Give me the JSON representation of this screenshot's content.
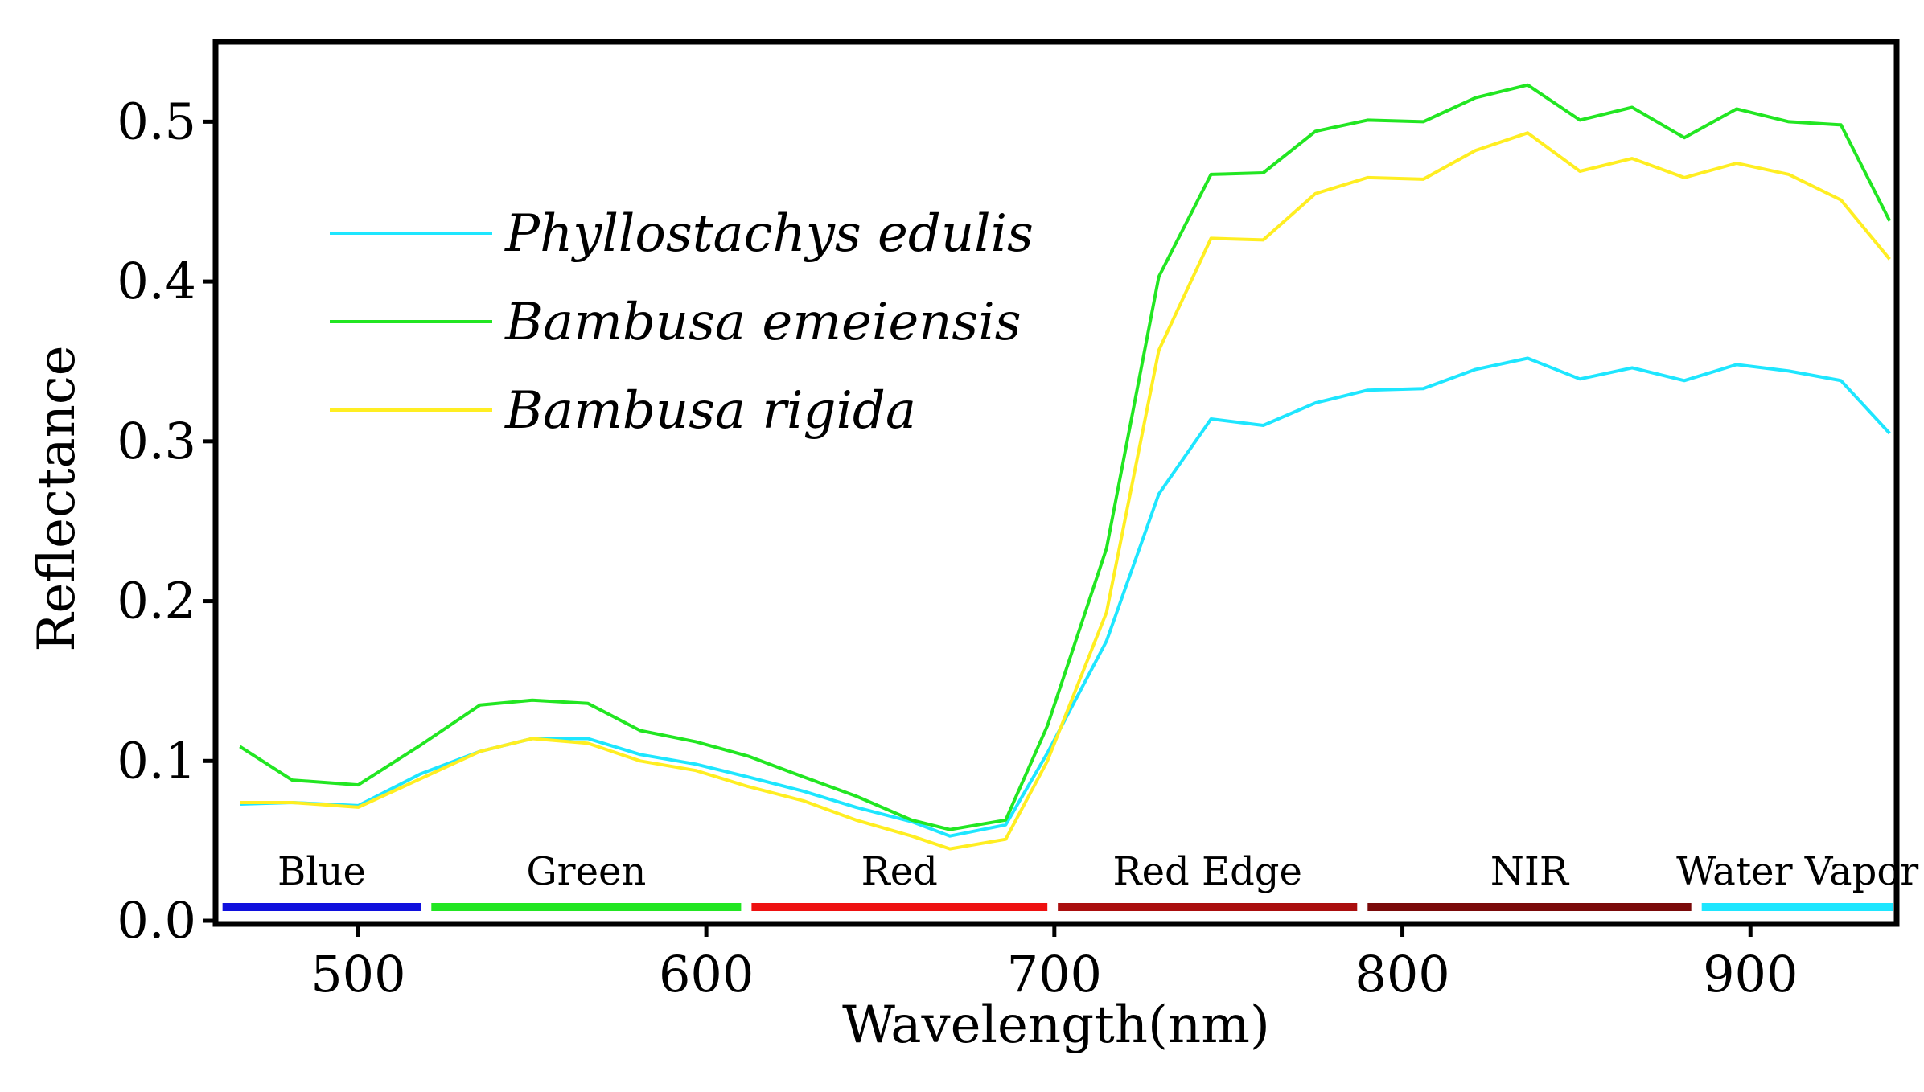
{
  "chart_data": {
    "type": "line",
    "xlabel": "Wavelength(nm)",
    "ylabel": "Reflectance",
    "xlim": [
      459,
      942
    ],
    "ylim": [
      -0.002,
      0.55
    ],
    "xticks": [
      500,
      600,
      700,
      800,
      900
    ],
    "yticks": [
      0.0,
      0.1,
      0.2,
      0.3,
      0.4,
      0.5
    ],
    "ytick_labels": [
      "0.0",
      "0.1",
      "0.2",
      "0.3",
      "0.4",
      "0.5"
    ],
    "grid": false,
    "legend": "upper-left",
    "x": [
      466,
      481,
      500,
      518,
      535,
      550,
      566,
      581,
      597,
      612,
      628,
      643,
      659,
      670,
      686,
      698,
      715,
      730,
      745,
      760,
      775,
      790,
      806,
      821,
      836,
      851,
      866,
      881,
      896,
      911,
      926,
      940
    ],
    "series": [
      {
        "name": "Phyllostachys edulis",
        "color": "#1ee6ff",
        "values": [
          0.073,
          0.074,
          0.072,
          0.092,
          0.106,
          0.114,
          0.114,
          0.104,
          0.098,
          0.09,
          0.081,
          0.071,
          0.062,
          0.053,
          0.06,
          0.105,
          0.175,
          0.267,
          0.314,
          0.31,
          0.324,
          0.332,
          0.333,
          0.345,
          0.352,
          0.339,
          0.346,
          0.338,
          0.348,
          0.344,
          0.338,
          0.305
        ]
      },
      {
        "name": "Bambusa emeiensis",
        "color": "#22e622",
        "values": [
          0.109,
          0.088,
          0.085,
          0.11,
          0.135,
          0.138,
          0.136,
          0.119,
          0.112,
          0.103,
          0.09,
          0.078,
          0.063,
          0.057,
          0.063,
          0.122,
          0.233,
          0.403,
          0.467,
          0.468,
          0.494,
          0.501,
          0.5,
          0.515,
          0.523,
          0.501,
          0.509,
          0.49,
          0.508,
          0.5,
          0.498,
          0.438
        ]
      },
      {
        "name": "Bambusa rigida",
        "color": "#ffee22",
        "values": [
          0.074,
          0.074,
          0.071,
          0.089,
          0.106,
          0.114,
          0.111,
          0.1,
          0.094,
          0.084,
          0.075,
          0.063,
          0.053,
          0.045,
          0.051,
          0.1,
          0.193,
          0.357,
          0.427,
          0.426,
          0.455,
          0.465,
          0.464,
          0.482,
          0.493,
          0.469,
          0.477,
          0.465,
          0.474,
          0.467,
          0.451,
          0.414
        ]
      }
    ],
    "bands": [
      {
        "label": "Blue",
        "start": 461,
        "end": 518,
        "color": "#1010dd"
      },
      {
        "label": "Green",
        "start": 521,
        "end": 610,
        "color": "#22e622"
      },
      {
        "label": "Red",
        "start": 613,
        "end": 698,
        "color": "#ee1111"
      },
      {
        "label": "Red Edge",
        "start": 701,
        "end": 787,
        "color": "#aa0e0e"
      },
      {
        "label": "NIR",
        "start": 790,
        "end": 883,
        "color": "#7a0a0a"
      },
      {
        "label": "Water Vapor",
        "start": 886,
        "end": 941,
        "color": "#1ee6ff"
      }
    ]
  }
}
